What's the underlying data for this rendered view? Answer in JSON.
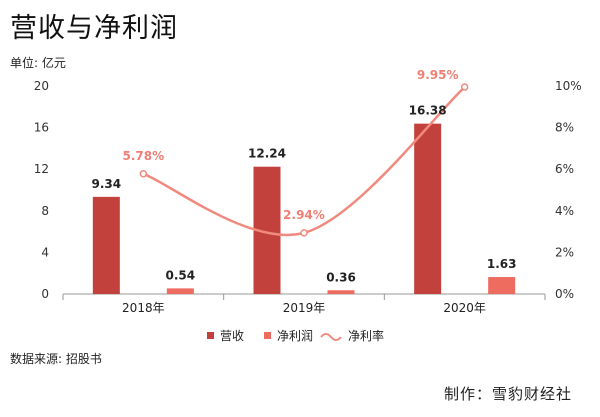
{
  "title": "营收与净利润",
  "unit_label": "单位: 亿元",
  "source_label": "数据来源: 招股书",
  "credit_label": "制作：雪豹财经社",
  "colors": {
    "revenue": "#c2413d",
    "net_profit": "#ee6c5f",
    "net_margin": "#f08a7f",
    "axis": "#999999"
  },
  "chart_data": {
    "type": "bar",
    "categories": [
      "2018年",
      "2019年",
      "2020年"
    ],
    "series": [
      {
        "name": "营收",
        "type": "bar",
        "axis": "left",
        "values": [
          9.34,
          12.24,
          16.38
        ],
        "labels": [
          "9.34",
          "12.24",
          "16.38"
        ]
      },
      {
        "name": "净利润",
        "type": "bar",
        "axis": "left",
        "values": [
          0.54,
          0.36,
          1.63
        ],
        "labels": [
          "0.54",
          "0.36",
          "1.63"
        ]
      },
      {
        "name": "净利率",
        "type": "line",
        "axis": "right",
        "values": [
          5.78,
          2.94,
          9.95
        ],
        "labels": [
          "5.78%",
          "2.94%",
          "9.95%"
        ]
      }
    ],
    "ylim": [
      0,
      20
    ],
    "yticks": [
      "0",
      "4",
      "8",
      "12",
      "16",
      "20"
    ],
    "y2lim": [
      0,
      10
    ],
    "y2ticks": [
      "0%",
      "2%",
      "4%",
      "6%",
      "8%",
      "10%"
    ],
    "legend_position": "bottom",
    "grid": false
  }
}
